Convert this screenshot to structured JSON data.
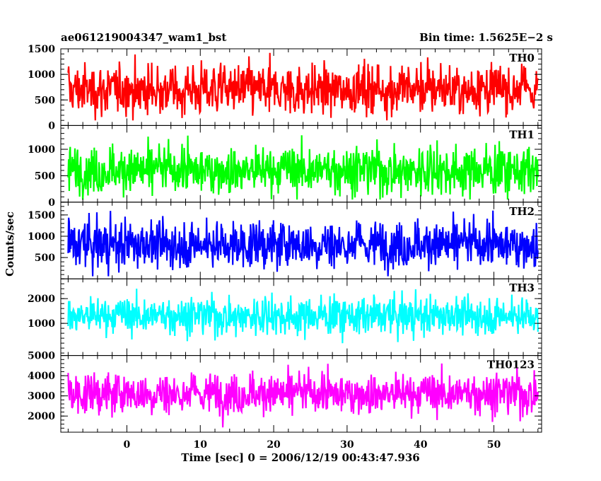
{
  "header": {
    "left": "ae061219004347_wam1_bst",
    "right": "Bin time: 1.5625E−2 s"
  },
  "chart_data": {
    "type": "line",
    "ylabel": "Counts/sec",
    "xlabel": "Time [sec] 0 = 2006/12/19 00:43:47.936",
    "xlim": [
      -9,
      56.5
    ],
    "xticks": [
      0,
      10,
      20,
      30,
      40,
      50
    ],
    "x_range": [
      -8.0,
      56.0
    ],
    "bin_time": 0.015625,
    "panels": [
      {
        "name": "TH0",
        "color": "#ff0000",
        "ylim": [
          0,
          1500
        ],
        "yticks": [
          0,
          500,
          1000,
          1500
        ],
        "baseline": 700,
        "noise": 250,
        "min": 100,
        "max": 1500
      },
      {
        "name": "TH1",
        "color": "#00ff00",
        "ylim": [
          0,
          1450
        ],
        "yticks": [
          0,
          500,
          1000
        ],
        "baseline": 600,
        "noise": 230,
        "min": 50,
        "max": 1350
      },
      {
        "name": "TH2",
        "color": "#0000ff",
        "ylim": [
          0,
          1800
        ],
        "yticks": [
          500,
          1000,
          1500
        ],
        "baseline": 800,
        "noise": 280,
        "min": 60,
        "max": 1700
      },
      {
        "name": "TH3",
        "color": "#00ffff",
        "ylim": [
          -300,
          2800
        ],
        "yticks": [
          1000,
          2000
        ],
        "baseline": 1300,
        "noise": 380,
        "min": -150,
        "max": 2700
      },
      {
        "name": "TH0123",
        "color": "#ff00ff",
        "ylim": [
          1200,
          5000
        ],
        "yticks": [
          2000,
          3000,
          4000,
          5000
        ],
        "baseline": 3100,
        "noise": 520,
        "min": 1250,
        "max": 4950
      }
    ]
  }
}
